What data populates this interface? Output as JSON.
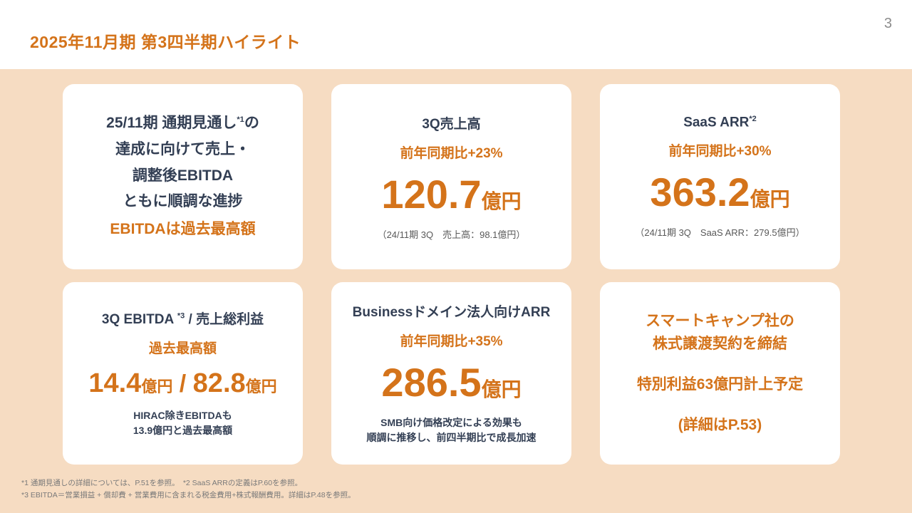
{
  "page_number": "3",
  "header": {
    "title": "2025年11月期 第3四半期ハイライト"
  },
  "colors": {
    "accent_orange": "#d4731a",
    "navy": "#333f54",
    "background_peach": "#f6dcc2",
    "note_gray": "#595959"
  },
  "cards": {
    "outlook": {
      "line1_pre": "25/11期 通期見通し",
      "line1_sup": "*1",
      "line1_post": "の",
      "line2": "達成に向けて売上・",
      "line3": "調整後EBITDA",
      "line4": "ともに順調な進捗",
      "highlight": "EBITDAは過去最高額"
    },
    "revenue": {
      "title": "3Q売上高",
      "yoy": "前年同期比+23%",
      "value": "120.7",
      "unit": "億円",
      "note": "（24/11期 3Q　売上高：98.1億円）"
    },
    "saas_arr": {
      "title": "SaaS ARR",
      "title_sup": "*2",
      "yoy": "前年同期比+30%",
      "value": "363.2",
      "unit": "億円",
      "note": "（24/11期 3Q　SaaS ARR：279.5億円）"
    },
    "ebitda": {
      "title_pre": "3Q EBITDA ",
      "title_sup": "*3",
      "title_post": " / 売上総利益",
      "label": "過去最高額",
      "value1": "14.4",
      "unit1": "億円",
      "separator": " / ",
      "value2": "82.8",
      "unit2": "億円",
      "note_line1": "HIRAC除きEBITDAも",
      "note_line2": "13.9億円と過去最高額"
    },
    "business_arr": {
      "title": "Businessドメイン法人向けARR",
      "yoy": "前年同期比+35%",
      "value": "286.5",
      "unit": "億円",
      "note_line1": "SMB向け価格改定による効果も",
      "note_line2": "順調に推移し、前四半期比で成長加速"
    },
    "smartcamp": {
      "line1": "スマートキャンプ社の",
      "line2": "株式譲渡契約を締結",
      "line3": "特別利益63億円計上予定",
      "line4": "(詳細はP.53)"
    }
  },
  "footnotes": {
    "line1": "*1 通期見通しの詳細については、P.51を参照。　*2 SaaS ARRの定義はP.60を参照。",
    "line2": "*3 EBITDA＝営業損益 + 償却費 + 営業費用に含まれる税金費用+株式報酬費用。詳細はP.48を参照。"
  }
}
